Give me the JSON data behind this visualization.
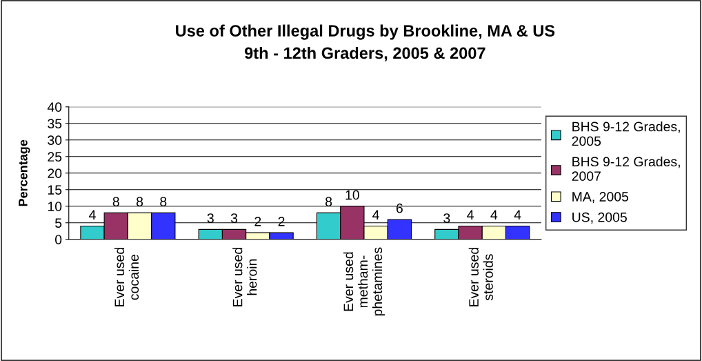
{
  "chart_data": {
    "type": "bar",
    "title": "Use of Other Illegal Drugs by Brookline, MA & US\n9th - 12th Graders, 2005 & 2007",
    "ylabel": "Percentage",
    "categories": [
      "Ever used\ncocaine",
      "Ever used\nheroin",
      "Ever used\nmetham-\nphetamines",
      "Ever used\nsteroids"
    ],
    "series": [
      {
        "name": "BHS 9-12 Grades,\n2005",
        "color": "#33cccc",
        "values": [
          4,
          3,
          8,
          3
        ]
      },
      {
        "name": "BHS 9-12 Grades,\n2007",
        "color": "#993366",
        "values": [
          8,
          3,
          10,
          4
        ]
      },
      {
        "name": "MA, 2005",
        "color": "#ffffcc",
        "values": [
          8,
          2,
          4,
          4
        ]
      },
      {
        "name": "US, 2005",
        "color": "#3333ff",
        "values": [
          8,
          2,
          6,
          4
        ]
      }
    ],
    "ylim": [
      0,
      40
    ],
    "yticks": [
      0,
      5,
      10,
      15,
      20,
      25,
      30,
      35,
      40
    ],
    "grid": "y",
    "legend": "right",
    "data_labels": true
  }
}
